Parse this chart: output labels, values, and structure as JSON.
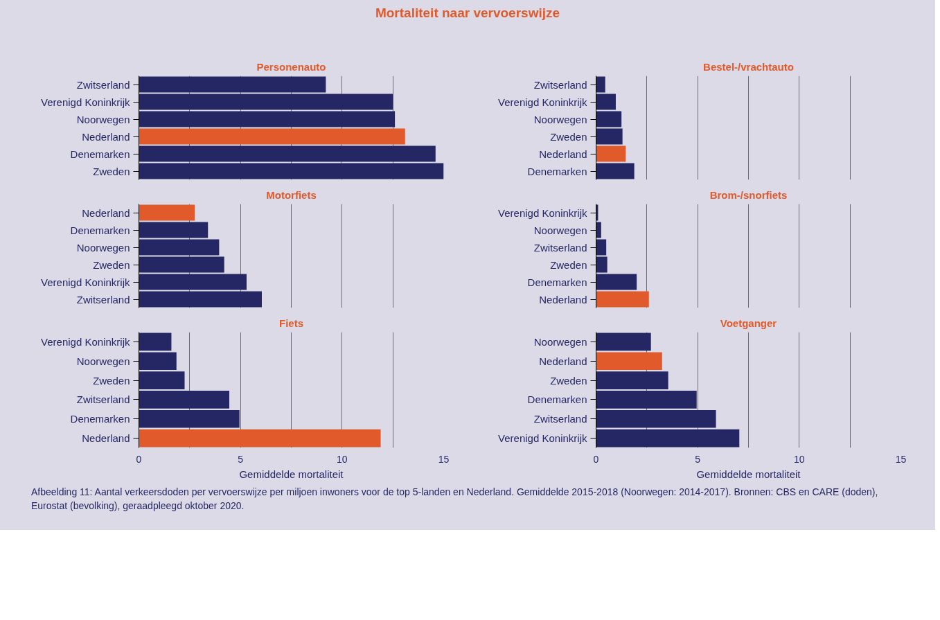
{
  "chart_data": [
    {
      "type": "other",
      "title": "Mortaliteit naar vervoerswijze",
      "annotations": [
        "Afbeelding 11: Aantal verkeersdoden per vervoerswijze per miljoen inwoners voor de top 5-landen en Nederland. Gemiddelde 2015-2018 (Noorwegen: 2014-2017). Bronnen: CBS en CARE (doden), Eurostat (bevolking), geraadpleegd oktober 2020."
      ]
    },
    {
      "type": "bar",
      "orientation": "horizontal",
      "title": "Personenauto",
      "categories": [
        "Zwitserland",
        "Verenigd Koninkrijk",
        "Noorwegen",
        "Nederland",
        "Denemarken",
        "Zweden"
      ],
      "values": [
        9.2,
        12.5,
        12.6,
        13.1,
        14.6,
        15.0
      ],
      "colors": [
        "#252765",
        "#252765",
        "#252765",
        "#e05a2b",
        "#252765",
        "#252765"
      ],
      "xlim": [
        0,
        15
      ],
      "xticks": [
        0,
        {
          "value": 2.5,
          "label": null
        },
        5,
        {
          "value": 7.5,
          "label": null
        },
        10,
        {
          "value": 12.5,
          "label": null
        },
        15
      ],
      "grid": "x",
      "tick_labels": "y"
    },
    {
      "type": "bar",
      "orientation": "horizontal",
      "title": "Bestel-/vrachtauto",
      "categories": [
        "Zwitserland",
        "Verenigd Koninkrijk",
        "Noorwegen",
        "Zweden",
        "Nederland",
        "Denemarken"
      ],
      "values": [
        0.45,
        0.97,
        1.25,
        1.3,
        1.46,
        1.88
      ],
      "colors": [
        "#252765",
        "#252765",
        "#252765",
        "#252765",
        "#e05a2b",
        "#252765"
      ],
      "xlim": [
        0,
        15
      ],
      "xticks": [
        0,
        {
          "value": 2.5,
          "label": null
        },
        5,
        {
          "value": 7.5,
          "label": null
        },
        10,
        {
          "value": 12.5,
          "label": null
        },
        15
      ],
      "grid": "x",
      "tick_labels": "y"
    },
    {
      "type": "bar",
      "orientation": "horizontal",
      "title": "Motorfiets",
      "categories": [
        "Nederland",
        "Denemarken",
        "Noorwegen",
        "Zweden",
        "Verenigd Koninkrijk",
        "Zwitserland"
      ],
      "values": [
        2.75,
        3.4,
        3.95,
        4.2,
        5.3,
        6.05
      ],
      "colors": [
        "#e05a2b",
        "#252765",
        "#252765",
        "#252765",
        "#252765",
        "#252765"
      ],
      "xlim": [
        0,
        15
      ],
      "xticks": [
        0,
        {
          "value": 2.5,
          "label": null
        },
        5,
        {
          "value": 7.5,
          "label": null
        },
        10,
        {
          "value": 12.5,
          "label": null
        },
        15
      ],
      "grid": "x",
      "tick_labels": "y"
    },
    {
      "type": "bar",
      "orientation": "horizontal",
      "title": "Brom-/snorfiets",
      "categories": [
        "Verenigd Koninkrijk",
        "Noorwegen",
        "Zwitserland",
        "Zweden",
        "Denemarken",
        "Nederland"
      ],
      "values": [
        0.1,
        0.25,
        0.5,
        0.55,
        2.0,
        2.6
      ],
      "colors": [
        "#252765",
        "#252765",
        "#252765",
        "#252765",
        "#252765",
        "#e05a2b"
      ],
      "xlim": [
        0,
        15
      ],
      "xticks": [
        0,
        {
          "value": 2.5,
          "label": null
        },
        5,
        {
          "value": 7.5,
          "label": null
        },
        10,
        {
          "value": 12.5,
          "label": null
        },
        15
      ],
      "grid": "x",
      "tick_labels": "y"
    },
    {
      "type": "bar",
      "orientation": "horizontal",
      "title": "Fiets",
      "xlabel": "Gemiddelde mortaliteit",
      "categories": [
        "Verenigd Koninkrijk",
        "Noorwegen",
        "Zweden",
        "Zwitserland",
        "Denemarken",
        "Nederland"
      ],
      "values": [
        1.6,
        1.85,
        2.25,
        4.45,
        4.95,
        11.9
      ],
      "colors": [
        "#252765",
        "#252765",
        "#252765",
        "#252765",
        "#252765",
        "#e05a2b"
      ],
      "xlim": [
        0,
        15
      ],
      "xticks": [
        0,
        {
          "value": 2.5,
          "label": null
        },
        5,
        {
          "value": 7.5,
          "label": null
        },
        10,
        {
          "value": 12.5,
          "label": null
        },
        15
      ],
      "grid": "x"
    },
    {
      "type": "bar",
      "orientation": "horizontal",
      "title": "Voetganger",
      "xlabel": "Gemiddelde mortaliteit",
      "categories": [
        "Noorwegen",
        "Nederland",
        "Zweden",
        "Denemarken",
        "Zwitserland",
        "Verenigd Koninkrijk"
      ],
      "values": [
        2.7,
        3.25,
        3.55,
        4.95,
        5.9,
        7.05
      ],
      "colors": [
        "#252765",
        "#e05a2b",
        "#252765",
        "#252765",
        "#252765",
        "#252765"
      ],
      "xlim": [
        0,
        15
      ],
      "xticks": [
        0,
        {
          "value": 2.5,
          "label": null
        },
        5,
        {
          "value": 7.5,
          "label": null
        },
        10,
        {
          "value": 12.5,
          "label": null
        },
        15
      ],
      "grid": "x"
    }
  ]
}
